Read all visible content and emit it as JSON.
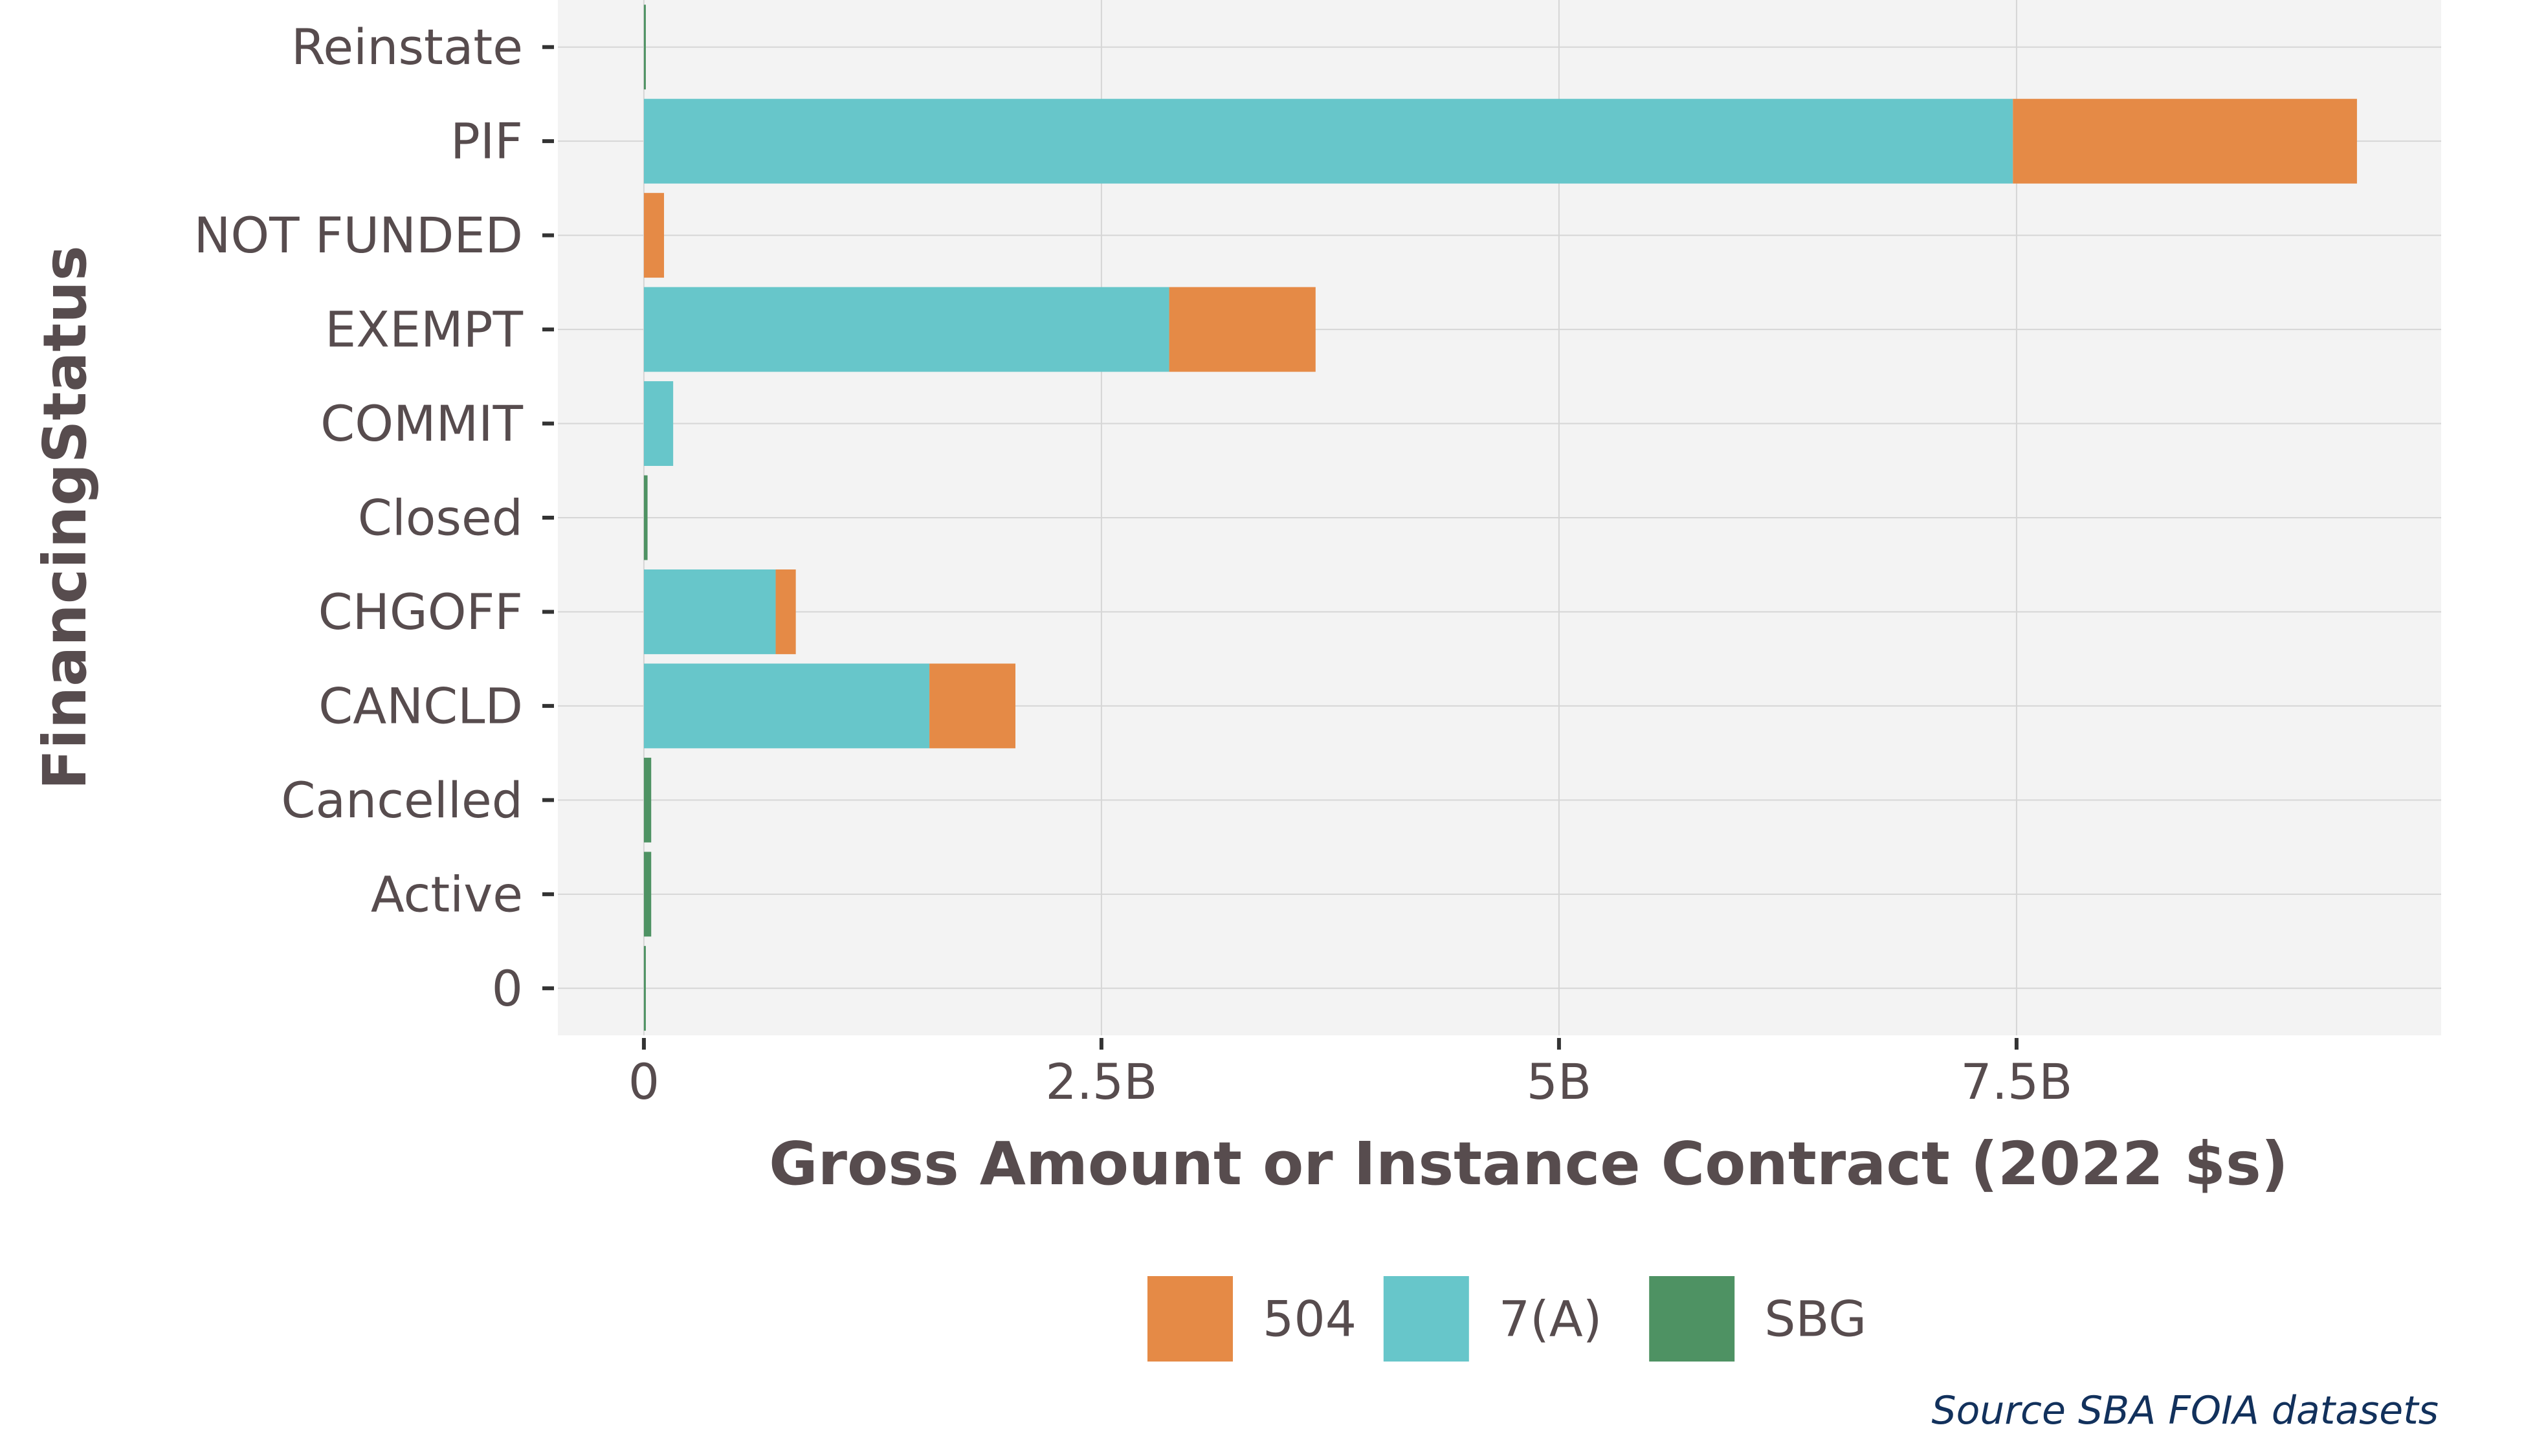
{
  "chart_data": {
    "type": "bar",
    "orientation": "horizontal",
    "stacked": true,
    "categories": [
      "Reinstate",
      "PIF",
      "NOT FUNDED",
      "EXEMPT",
      "COMMIT",
      "Closed",
      "CHGOFF",
      "CANCLD",
      "Cancelled",
      "Active",
      "0"
    ],
    "series": [
      {
        "name": "7(A)",
        "color": "#67c6ca",
        "values": [
          0,
          7.48,
          0,
          2.87,
          0.16,
          0,
          0.72,
          1.56,
          0,
          0,
          0
        ]
      },
      {
        "name": "504",
        "color": "#e58a46",
        "values": [
          0,
          1.88,
          0.11,
          0.8,
          0,
          0,
          0.11,
          0.47,
          0,
          0,
          0
        ]
      },
      {
        "name": "SBG",
        "color": "#4e9263",
        "values": [
          0.005,
          0,
          0,
          0,
          0,
          0.02,
          0,
          0,
          0.04,
          0.04,
          0.005
        ]
      }
    ],
    "xlim": [
      -0.47,
      9.82
    ],
    "x_unit": "billion",
    "x_ticks": [
      0,
      2.5,
      5,
      7.5
    ],
    "x_tick_labels": [
      "0",
      "2.5B",
      "5B",
      "7.5B"
    ],
    "xlabel": "Gross Amount or Instance Contract (2022 $s)",
    "ylabel": "FinancingStatus",
    "grid": true,
    "legend": {
      "position": "bottom",
      "entries": [
        "504",
        "7(A)",
        "SBG"
      ]
    },
    "caption": "Source SBA FOIA datasets",
    "colors": {
      "panel_background": "#f3f3f3",
      "gridline": "#d6d6d6",
      "text": "#574c4e",
      "caption": "#12315c"
    }
  }
}
